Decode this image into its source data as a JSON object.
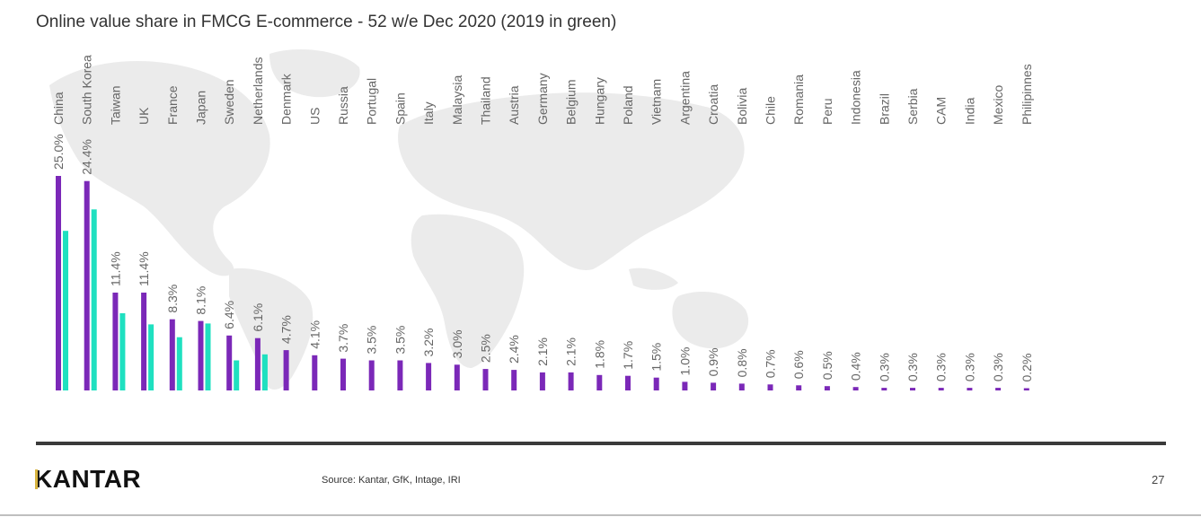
{
  "title": "Online value share in FMCG E-commerce - 52 w/e Dec 2020 (2019 in green)",
  "colors": {
    "series_2020": "#7b28b8",
    "series_2019": "#1fe0c0",
    "map": "#ebebeb",
    "label": "#666666"
  },
  "chart_data": {
    "type": "bar",
    "title": "Online value share in FMCG E-commerce - 52 w/e Dec 2020 (2019 in green)",
    "xlabel": "",
    "ylabel": "",
    "ylim": [
      0,
      25
    ],
    "grid": false,
    "legend": "none (described in title)",
    "categories": [
      "China",
      "South Korea",
      "Taiwan",
      "UK",
      "France",
      "Japan",
      "Sweden",
      "Netherlands",
      "Denmark",
      "US",
      "Russia",
      "Portugal",
      "Spain",
      "Italy",
      "Malaysia",
      "Thailand",
      "Austria",
      "Germany",
      "Belgium",
      "Hungary",
      "Poland",
      "Vietnam",
      "Argentina",
      "Croatia",
      "Bolivia",
      "Chile",
      "Romania",
      "Peru",
      "Indonesia",
      "Brazil",
      "Serbia",
      "CAM",
      "India",
      "Mexico",
      "Philipinnes"
    ],
    "series": [
      {
        "name": "2020",
        "values": [
          25.0,
          24.4,
          11.4,
          11.4,
          8.3,
          8.1,
          6.4,
          6.1,
          4.7,
          4.1,
          3.7,
          3.5,
          3.5,
          3.2,
          3.0,
          2.5,
          2.4,
          2.1,
          2.1,
          1.8,
          1.7,
          1.5,
          1.0,
          0.9,
          0.8,
          0.7,
          0.6,
          0.5,
          0.4,
          0.3,
          0.3,
          0.3,
          0.3,
          0.3,
          0.2
        ],
        "labels": [
          "25.0%",
          "24.4%",
          "11.4%",
          "11.4%",
          "8.3%",
          "8.1%",
          "6.4%",
          "6.1%",
          "4.7%",
          "4.1%",
          "3.7%",
          "3.5%",
          "3.5%",
          "3.2%",
          "3.0%",
          "2.5%",
          "2.4%",
          "2.1%",
          "2.1%",
          "1.8%",
          "1.7%",
          "1.5%",
          "1.0%",
          "0.9%",
          "0.8%",
          "0.7%",
          "0.6%",
          "0.5%",
          "0.4%",
          "0.3%",
          "0.3%",
          "0.3%",
          "0.3%",
          "0.3%",
          "0.2%"
        ]
      },
      {
        "name": "2019",
        "values": [
          18.6,
          21.1,
          9.0,
          7.7,
          6.2,
          7.8,
          3.5,
          4.2,
          null,
          null,
          null,
          null,
          null,
          null,
          null,
          null,
          null,
          null,
          null,
          null,
          null,
          null,
          null,
          null,
          null,
          null,
          null,
          null,
          null,
          null,
          null,
          null,
          null,
          null,
          null
        ]
      }
    ]
  },
  "footer": {
    "logo": "KANTAR",
    "source": "Source: Kantar, GfK, Intage, IRI",
    "page_number": "27"
  }
}
